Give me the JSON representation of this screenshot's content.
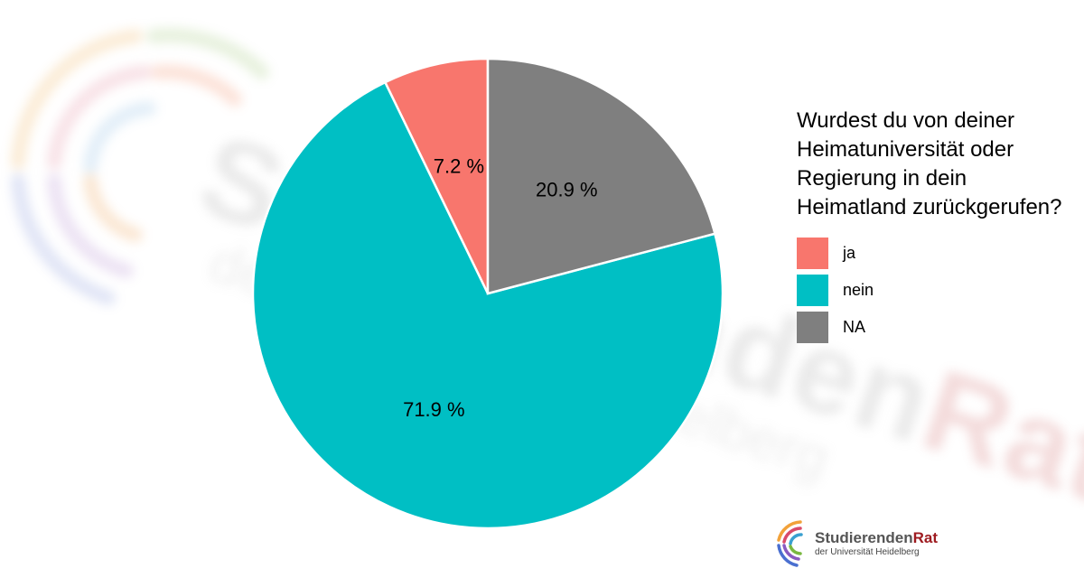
{
  "chart_data": {
    "type": "pie",
    "categories": [
      "ja",
      "nein",
      "NA"
    ],
    "values": [
      7.2,
      71.9,
      20.9
    ],
    "labels": [
      "7.2 %",
      "71.9 %",
      "20.9 %"
    ],
    "colors": [
      "#F8766D",
      "#00BFC4",
      "#7F7F7F"
    ],
    "legend_title": "Wurdest du von deiner Heimatuniversität oder Regierung in dein Heimatland zurückgerufen?",
    "legend_placement": "right"
  },
  "watermark": {
    "title_main": "Studierenden",
    "title_accent": "Rat",
    "subtitle": "der Universität Heidelberg"
  },
  "logo": {
    "name_main": "Studierenden",
    "name_accent": "Rat",
    "subtitle": "der Universität Heidelberg"
  }
}
